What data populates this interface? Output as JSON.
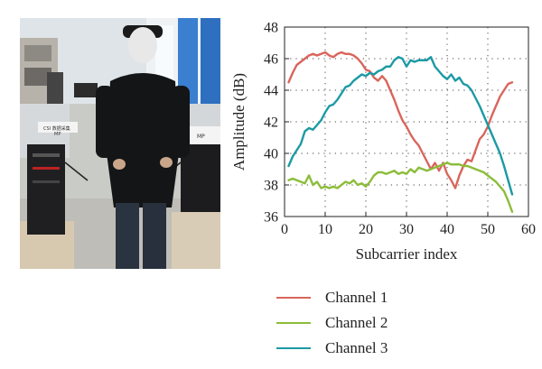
{
  "photo": {
    "sign1_line1": "CSI 数据采集",
    "sign1_line2": "MP",
    "sign2": "MP"
  },
  "chart_data": {
    "type": "line",
    "xlabel": "Subcarrier index",
    "ylabel": "Amplitude (dB)",
    "xlim": [
      0,
      60
    ],
    "ylim": [
      36,
      48
    ],
    "xticks": [
      0,
      10,
      20,
      30,
      40,
      50,
      60
    ],
    "yticks": [
      36,
      38,
      40,
      42,
      44,
      46,
      48
    ],
    "grid": true,
    "legend_position": "below",
    "series": [
      {
        "name": "Channel 1",
        "color": "#d9655b",
        "x": [
          1,
          2,
          3,
          4,
          5,
          6,
          7,
          8,
          9,
          10,
          11,
          12,
          13,
          14,
          15,
          16,
          17,
          18,
          19,
          20,
          21,
          22,
          23,
          24,
          25,
          26,
          27,
          28,
          29,
          30,
          31,
          32,
          33,
          34,
          35,
          36,
          37,
          38,
          39,
          40,
          41,
          42,
          43,
          44,
          45,
          46,
          47,
          48,
          49,
          50,
          51,
          52,
          53,
          54,
          55,
          56
        ],
        "y": [
          44.5,
          45.1,
          45.6,
          45.8,
          46.0,
          46.2,
          46.3,
          46.2,
          46.3,
          46.4,
          46.2,
          46.1,
          46.3,
          46.4,
          46.3,
          46.3,
          46.2,
          46.0,
          45.7,
          45.3,
          45.2,
          44.8,
          44.6,
          44.9,
          44.6,
          44.0,
          43.4,
          42.7,
          42.1,
          41.7,
          41.2,
          40.8,
          40.5,
          40.0,
          39.5,
          39.0,
          39.4,
          38.9,
          39.4,
          38.7,
          38.3,
          37.8,
          38.6,
          39.2,
          39.6,
          39.5,
          40.2,
          40.9,
          41.2,
          41.7,
          42.4,
          43.0,
          43.6,
          44.0,
          44.4,
          44.5
        ]
      },
      {
        "name": "Channel 2",
        "color": "#8cbd3a",
        "x": [
          1,
          2,
          3,
          4,
          5,
          6,
          7,
          8,
          9,
          10,
          11,
          12,
          13,
          14,
          15,
          16,
          17,
          18,
          19,
          20,
          21,
          22,
          23,
          24,
          25,
          26,
          27,
          28,
          29,
          30,
          31,
          32,
          33,
          34,
          35,
          36,
          37,
          38,
          39,
          40,
          41,
          42,
          43,
          44,
          45,
          46,
          47,
          48,
          49,
          50,
          51,
          52,
          53,
          54,
          55,
          56
        ],
        "y": [
          38.3,
          38.4,
          38.3,
          38.2,
          38.1,
          38.6,
          38.0,
          38.2,
          37.8,
          37.9,
          37.8,
          37.9,
          37.8,
          38.0,
          38.2,
          38.1,
          38.3,
          38.0,
          38.1,
          37.9,
          38.2,
          38.6,
          38.8,
          38.8,
          38.7,
          38.8,
          38.9,
          38.7,
          38.8,
          38.7,
          39.0,
          38.8,
          39.1,
          39.0,
          38.9,
          39.0,
          39.1,
          39.2,
          39.3,
          39.4,
          39.3,
          39.3,
          39.3,
          39.2,
          39.2,
          39.1,
          39.0,
          38.9,
          38.8,
          38.6,
          38.4,
          38.2,
          37.9,
          37.6,
          37.0,
          36.3
        ]
      },
      {
        "name": "Channel 3",
        "color": "#1c9aa4",
        "x": [
          1,
          2,
          3,
          4,
          5,
          6,
          7,
          8,
          9,
          10,
          11,
          12,
          13,
          14,
          15,
          16,
          17,
          18,
          19,
          20,
          21,
          22,
          23,
          24,
          25,
          26,
          27,
          28,
          29,
          30,
          31,
          32,
          33,
          34,
          35,
          36,
          37,
          38,
          39,
          40,
          41,
          42,
          43,
          44,
          45,
          46,
          47,
          48,
          49,
          50,
          51,
          52,
          53,
          54,
          55,
          56
        ],
        "y": [
          39.2,
          39.8,
          40.2,
          40.6,
          41.4,
          41.6,
          41.5,
          41.8,
          42.1,
          42.6,
          43.0,
          43.1,
          43.4,
          43.8,
          44.2,
          44.3,
          44.6,
          44.8,
          45.0,
          44.9,
          45.1,
          45.0,
          45.2,
          45.3,
          45.5,
          45.5,
          45.9,
          46.1,
          46.0,
          45.5,
          45.9,
          45.8,
          45.9,
          45.9,
          45.9,
          46.1,
          45.5,
          45.2,
          44.9,
          44.7,
          45.0,
          44.6,
          44.8,
          44.4,
          44.3,
          44.0,
          43.5,
          43.0,
          42.4,
          41.8,
          41.2,
          40.6,
          40.0,
          39.2,
          38.3,
          37.4
        ]
      }
    ]
  }
}
